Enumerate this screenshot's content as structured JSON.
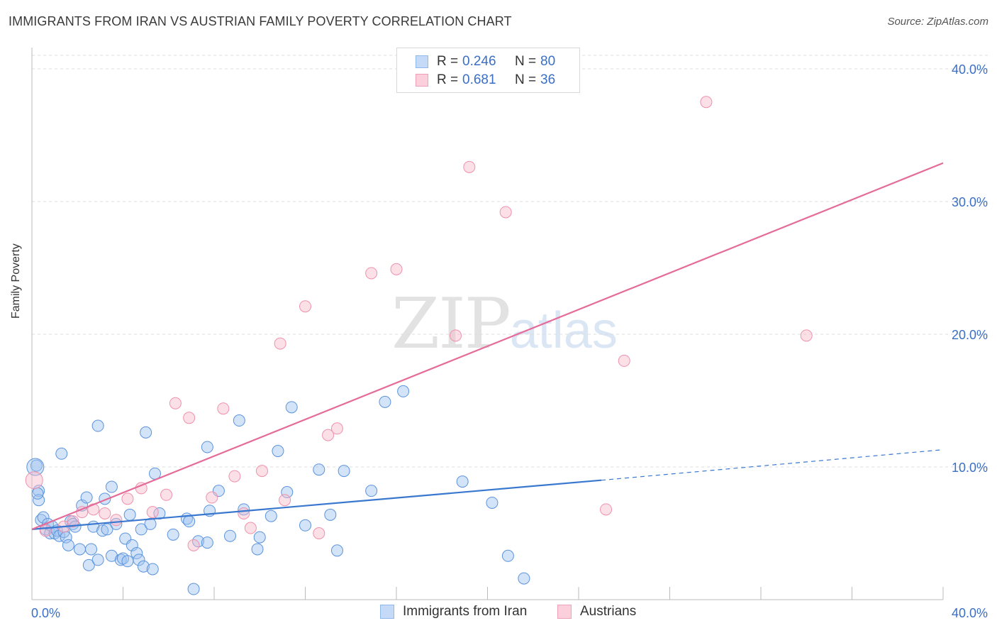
{
  "title": "IMMIGRANTS FROM IRAN VS AUSTRIAN FAMILY POVERTY CORRELATION CHART",
  "source": "Source: ZipAtlas.com",
  "watermark": {
    "zip": "ZIP",
    "atlas": "atlas"
  },
  "legend_top": {
    "rows": [
      {
        "r_label": "R =",
        "r_value": "0.246",
        "n_label": "N =",
        "n_value": "80",
        "color": "#8fb8ec",
        "fill": "#c5daf6"
      },
      {
        "r_label": "R =",
        "r_value": "0.681",
        "n_label": "N =",
        "n_value": "36",
        "color": "#f0a0b8",
        "fill": "#fbd0dc"
      }
    ]
  },
  "legend_bottom": [
    {
      "label": "Immigrants from Iran",
      "color": "#8fb8ec",
      "fill": "#c5daf6"
    },
    {
      "label": "Austrians",
      "color": "#f0a0b8",
      "fill": "#fbd0dc"
    }
  ],
  "chart_data": {
    "type": "scatter",
    "title": "IMMIGRANTS FROM IRAN VS AUSTRIAN FAMILY POVERTY CORRELATION CHART",
    "xlabel": "",
    "ylabel": "Family Poverty",
    "xlim": [
      0,
      40
    ],
    "ylim": [
      0,
      41
    ],
    "x_tick_labels": [
      "0.0%",
      "40.0%"
    ],
    "y_tick_labels": [
      "10.0%",
      "20.0%",
      "30.0%",
      "40.0%"
    ],
    "y_ticks": [
      10,
      20,
      30,
      40
    ],
    "grid": true,
    "legend_position": "top-center",
    "series": [
      {
        "name": "Immigrants from Iran",
        "color": "#5b93dc",
        "fill": "rgba(160,196,240,0.45)",
        "line_color": "#3a78d0",
        "R": 0.246,
        "N": 80,
        "trend": {
          "x0": 0,
          "y0": 5.3,
          "x1": 25,
          "y1": 9.0,
          "x_dash_end": 40,
          "y_dash_end": 11.3
        },
        "points": [
          [
            0.2,
            10.1
          ],
          [
            0.3,
            8.2
          ],
          [
            0.3,
            7.5
          ],
          [
            0.4,
            6.0
          ],
          [
            0.5,
            6.2
          ],
          [
            0.6,
            5.3
          ],
          [
            0.7,
            5.7
          ],
          [
            0.8,
            5.0
          ],
          [
            0.9,
            5.5
          ],
          [
            1.0,
            5.0
          ],
          [
            1.1,
            5.2
          ],
          [
            1.2,
            4.8
          ],
          [
            1.3,
            11.0
          ],
          [
            1.4,
            5.1
          ],
          [
            1.5,
            4.7
          ],
          [
            1.6,
            4.1
          ],
          [
            1.7,
            5.9
          ],
          [
            1.8,
            5.7
          ],
          [
            1.9,
            5.5
          ],
          [
            2.1,
            3.8
          ],
          [
            2.2,
            7.1
          ],
          [
            2.4,
            7.7
          ],
          [
            2.5,
            2.6
          ],
          [
            2.6,
            3.8
          ],
          [
            2.7,
            5.5
          ],
          [
            2.9,
            3.0
          ],
          [
            2.9,
            13.1
          ],
          [
            3.1,
            5.2
          ],
          [
            3.2,
            7.6
          ],
          [
            3.3,
            5.3
          ],
          [
            3.5,
            3.3
          ],
          [
            3.5,
            8.5
          ],
          [
            3.7,
            5.7
          ],
          [
            3.9,
            3.0
          ],
          [
            4.0,
            3.1
          ],
          [
            4.1,
            4.6
          ],
          [
            4.2,
            2.9
          ],
          [
            4.3,
            6.4
          ],
          [
            4.4,
            4.1
          ],
          [
            4.6,
            3.5
          ],
          [
            4.7,
            3.0
          ],
          [
            4.8,
            5.3
          ],
          [
            4.9,
            2.5
          ],
          [
            5.0,
            12.6
          ],
          [
            5.2,
            5.7
          ],
          [
            5.3,
            2.3
          ],
          [
            5.4,
            9.5
          ],
          [
            5.6,
            6.5
          ],
          [
            6.2,
            4.9
          ],
          [
            6.8,
            6.1
          ],
          [
            6.9,
            5.9
          ],
          [
            7.1,
            0.8
          ],
          [
            7.3,
            4.4
          ],
          [
            7.7,
            4.3
          ],
          [
            7.7,
            11.5
          ],
          [
            7.8,
            6.7
          ],
          [
            8.2,
            8.2
          ],
          [
            8.7,
            4.8
          ],
          [
            9.1,
            13.5
          ],
          [
            9.3,
            6.8
          ],
          [
            9.9,
            3.8
          ],
          [
            10.0,
            4.7
          ],
          [
            10.5,
            6.3
          ],
          [
            10.8,
            11.2
          ],
          [
            11.2,
            8.1
          ],
          [
            11.4,
            14.5
          ],
          [
            12.0,
            5.6
          ],
          [
            12.6,
            9.8
          ],
          [
            13.1,
            6.4
          ],
          [
            13.4,
            3.7
          ],
          [
            13.7,
            9.7
          ],
          [
            14.9,
            8.2
          ],
          [
            15.5,
            14.9
          ],
          [
            16.3,
            15.7
          ],
          [
            18.9,
            8.9
          ],
          [
            20.2,
            7.3
          ],
          [
            20.9,
            3.3
          ],
          [
            21.6,
            1.6
          ],
          [
            0.15,
            10.0
          ],
          [
            0.25,
            8.0
          ]
        ]
      },
      {
        "name": "Austrians",
        "color": "#ee91ac",
        "fill": "rgba(248,186,204,0.45)",
        "line_color": "#e56b98",
        "R": 0.681,
        "N": 36,
        "trend": {
          "x0": 0,
          "y0": 5.3,
          "x1": 40,
          "y1": 32.9
        },
        "points": [
          [
            0.1,
            9.0
          ],
          [
            0.6,
            5.2
          ],
          [
            1.4,
            5.5
          ],
          [
            1.8,
            5.9
          ],
          [
            2.2,
            6.6
          ],
          [
            2.7,
            6.8
          ],
          [
            3.2,
            6.5
          ],
          [
            3.7,
            6.0
          ],
          [
            4.2,
            7.6
          ],
          [
            4.8,
            8.4
          ],
          [
            5.3,
            6.6
          ],
          [
            5.9,
            7.9
          ],
          [
            6.3,
            14.8
          ],
          [
            6.9,
            13.7
          ],
          [
            7.1,
            4.1
          ],
          [
            7.9,
            7.7
          ],
          [
            8.4,
            14.4
          ],
          [
            8.9,
            9.3
          ],
          [
            9.3,
            6.5
          ],
          [
            9.6,
            5.4
          ],
          [
            10.1,
            9.7
          ],
          [
            10.9,
            19.3
          ],
          [
            11.1,
            7.5
          ],
          [
            12.0,
            22.1
          ],
          [
            12.6,
            5.0
          ],
          [
            13.0,
            12.4
          ],
          [
            13.4,
            12.9
          ],
          [
            14.9,
            24.6
          ],
          [
            16.0,
            24.9
          ],
          [
            18.6,
            19.9
          ],
          [
            19.2,
            32.6
          ],
          [
            20.8,
            29.2
          ],
          [
            25.2,
            6.8
          ],
          [
            26.0,
            18.0
          ],
          [
            29.6,
            37.5
          ],
          [
            34.0,
            19.9
          ]
        ]
      }
    ]
  }
}
